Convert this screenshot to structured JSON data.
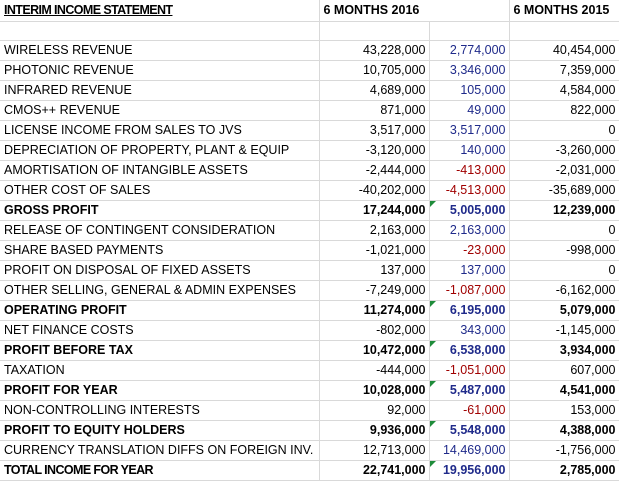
{
  "sheet": {
    "title": "INTERIM INCOME STATEMENT",
    "col_2016": "6 MONTHS 2016",
    "col_2015": "6 MONTHS 2015",
    "rows": [
      {
        "label": "WIRELESS REVENUE",
        "v2016": "43,228,000",
        "diff": "2,774,000",
        "v2015": "40,454,000",
        "bold": false,
        "neg": false,
        "flag": false
      },
      {
        "label": "PHOTONIC REVENUE",
        "v2016": "10,705,000",
        "diff": "3,346,000",
        "v2015": "7,359,000",
        "bold": false,
        "neg": false,
        "flag": false
      },
      {
        "label": "INFRARED REVENUE",
        "v2016": "4,689,000",
        "diff": "105,000",
        "v2015": "4,584,000",
        "bold": false,
        "neg": false,
        "flag": false
      },
      {
        "label": "CMOS++ REVENUE",
        "v2016": "871,000",
        "diff": "49,000",
        "v2015": "822,000",
        "bold": false,
        "neg": false,
        "flag": false
      },
      {
        "label": "LICENSE INCOME FROM SALES TO JVS",
        "v2016": "3,517,000",
        "diff": "3,517,000",
        "v2015": "0",
        "bold": false,
        "neg": false,
        "flag": false
      },
      {
        "label": "DEPRECIATION OF PROPERTY, PLANT & EQUIP",
        "v2016": "-3,120,000",
        "diff": "140,000",
        "v2015": "-3,260,000",
        "bold": false,
        "neg": false,
        "flag": false
      },
      {
        "label": "AMORTISATION OF INTANGIBLE ASSETS",
        "v2016": "-2,444,000",
        "diff": "-413,000",
        "v2015": "-2,031,000",
        "bold": false,
        "neg": true,
        "flag": false
      },
      {
        "label": "OTHER COST OF SALES",
        "v2016": "-40,202,000",
        "diff": "-4,513,000",
        "v2015": "-35,689,000",
        "bold": false,
        "neg": true,
        "flag": false
      },
      {
        "label": "GROSS PROFIT",
        "v2016": "17,244,000",
        "diff": "5,005,000",
        "v2015": "12,239,000",
        "bold": true,
        "neg": false,
        "flag": true
      },
      {
        "label": "RELEASE OF CONTINGENT CONSIDERATION",
        "v2016": "2,163,000",
        "diff": "2,163,000",
        "v2015": "0",
        "bold": false,
        "neg": false,
        "flag": false
      },
      {
        "label": "SHARE BASED PAYMENTS",
        "v2016": "-1,021,000",
        "diff": "-23,000",
        "v2015": "-998,000",
        "bold": false,
        "neg": true,
        "flag": false
      },
      {
        "label": "PROFIT ON DISPOSAL OF FIXED ASSETS",
        "v2016": "137,000",
        "diff": "137,000",
        "v2015": "0",
        "bold": false,
        "neg": false,
        "flag": false
      },
      {
        "label": "OTHER SELLING, GENERAL & ADMIN EXPENSES",
        "v2016": "-7,249,000",
        "diff": "-1,087,000",
        "v2015": "-6,162,000",
        "bold": false,
        "neg": true,
        "flag": false
      },
      {
        "label": "OPERATING PROFIT",
        "v2016": "11,274,000",
        "diff": "6,195,000",
        "v2015": "5,079,000",
        "bold": true,
        "neg": false,
        "flag": true
      },
      {
        "label": "NET FINANCE COSTS",
        "v2016": "-802,000",
        "diff": "343,000",
        "v2015": "-1,145,000",
        "bold": false,
        "neg": false,
        "flag": false
      },
      {
        "label": "PROFIT BEFORE TAX",
        "v2016": "10,472,000",
        "diff": "6,538,000",
        "v2015": "3,934,000",
        "bold": true,
        "neg": false,
        "flag": true
      },
      {
        "label": "TAXATION",
        "v2016": "-444,000",
        "diff": "-1,051,000",
        "v2015": "607,000",
        "bold": false,
        "neg": true,
        "flag": false
      },
      {
        "label": "PROFIT FOR YEAR",
        "v2016": "10,028,000",
        "diff": "5,487,000",
        "v2015": "4,541,000",
        "bold": true,
        "neg": false,
        "flag": true
      },
      {
        "label": "NON-CONTROLLING INTERESTS",
        "v2016": "92,000",
        "diff": "-61,000",
        "v2015": "153,000",
        "bold": false,
        "neg": true,
        "flag": false
      },
      {
        "label": "PROFIT TO EQUITY HOLDERS",
        "v2016": "9,936,000",
        "diff": "5,548,000",
        "v2015": "4,388,000",
        "bold": true,
        "neg": false,
        "flag": true
      },
      {
        "label": "CURRENCY TRANSLATION DIFFS ON FOREIGN INV.",
        "v2016": "12,713,000",
        "diff": "14,469,000",
        "v2015": "-1,756,000",
        "bold": false,
        "neg": false,
        "flag": false
      },
      {
        "label": "TOTAL INCOME FOR YEAR",
        "v2016": "22,741,000",
        "diff": "19,956,000",
        "v2015": "2,785,000",
        "bold": true,
        "neg": false,
        "flag": true,
        "total": true
      }
    ]
  },
  "colors": {
    "positive_diff": "#1f2a8a",
    "negative_diff": "#a00000",
    "flag_marker": "#1e8c3a",
    "gridline": "#d9d9d9"
  }
}
